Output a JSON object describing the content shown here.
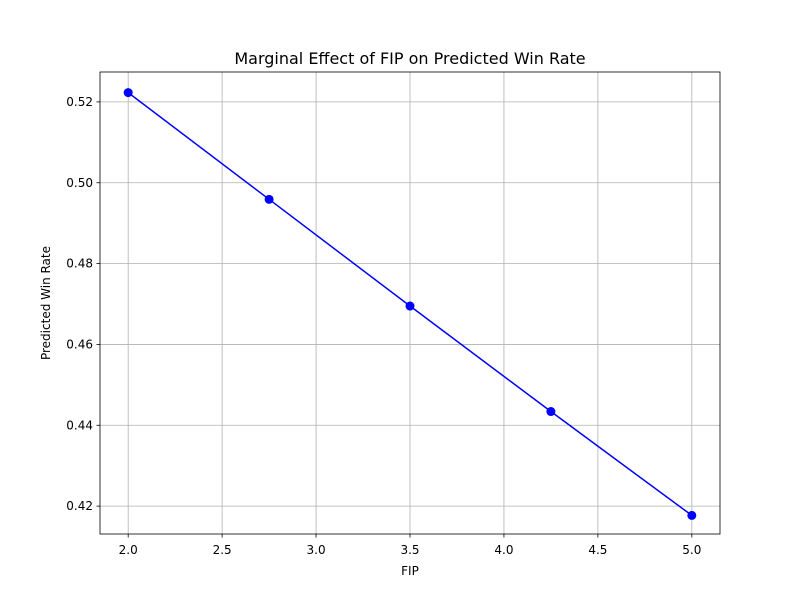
{
  "chart_data": {
    "type": "line",
    "title": "Marginal Effect of FIP on Predicted Win Rate",
    "xlabel": "FIP",
    "ylabel": "Predicted Win Rate",
    "x_ticks": [
      "2.0",
      "2.5",
      "3.0",
      "3.5",
      "4.0",
      "4.5",
      "5.0"
    ],
    "y_ticks": [
      "0.42",
      "0.44",
      "0.46",
      "0.48",
      "0.50",
      "0.52"
    ],
    "xlim": [
      1.85,
      5.15
    ],
    "ylim": [
      0.4131,
      0.5274
    ],
    "grid": true,
    "legend": "none",
    "series": [
      {
        "color": "#0000ff",
        "marker": "circle",
        "x": [
          2.0,
          2.75,
          3.5,
          4.25,
          5.0
        ],
        "y": [
          0.5223,
          0.4959,
          0.4695,
          0.4434,
          0.4177
        ]
      }
    ]
  }
}
